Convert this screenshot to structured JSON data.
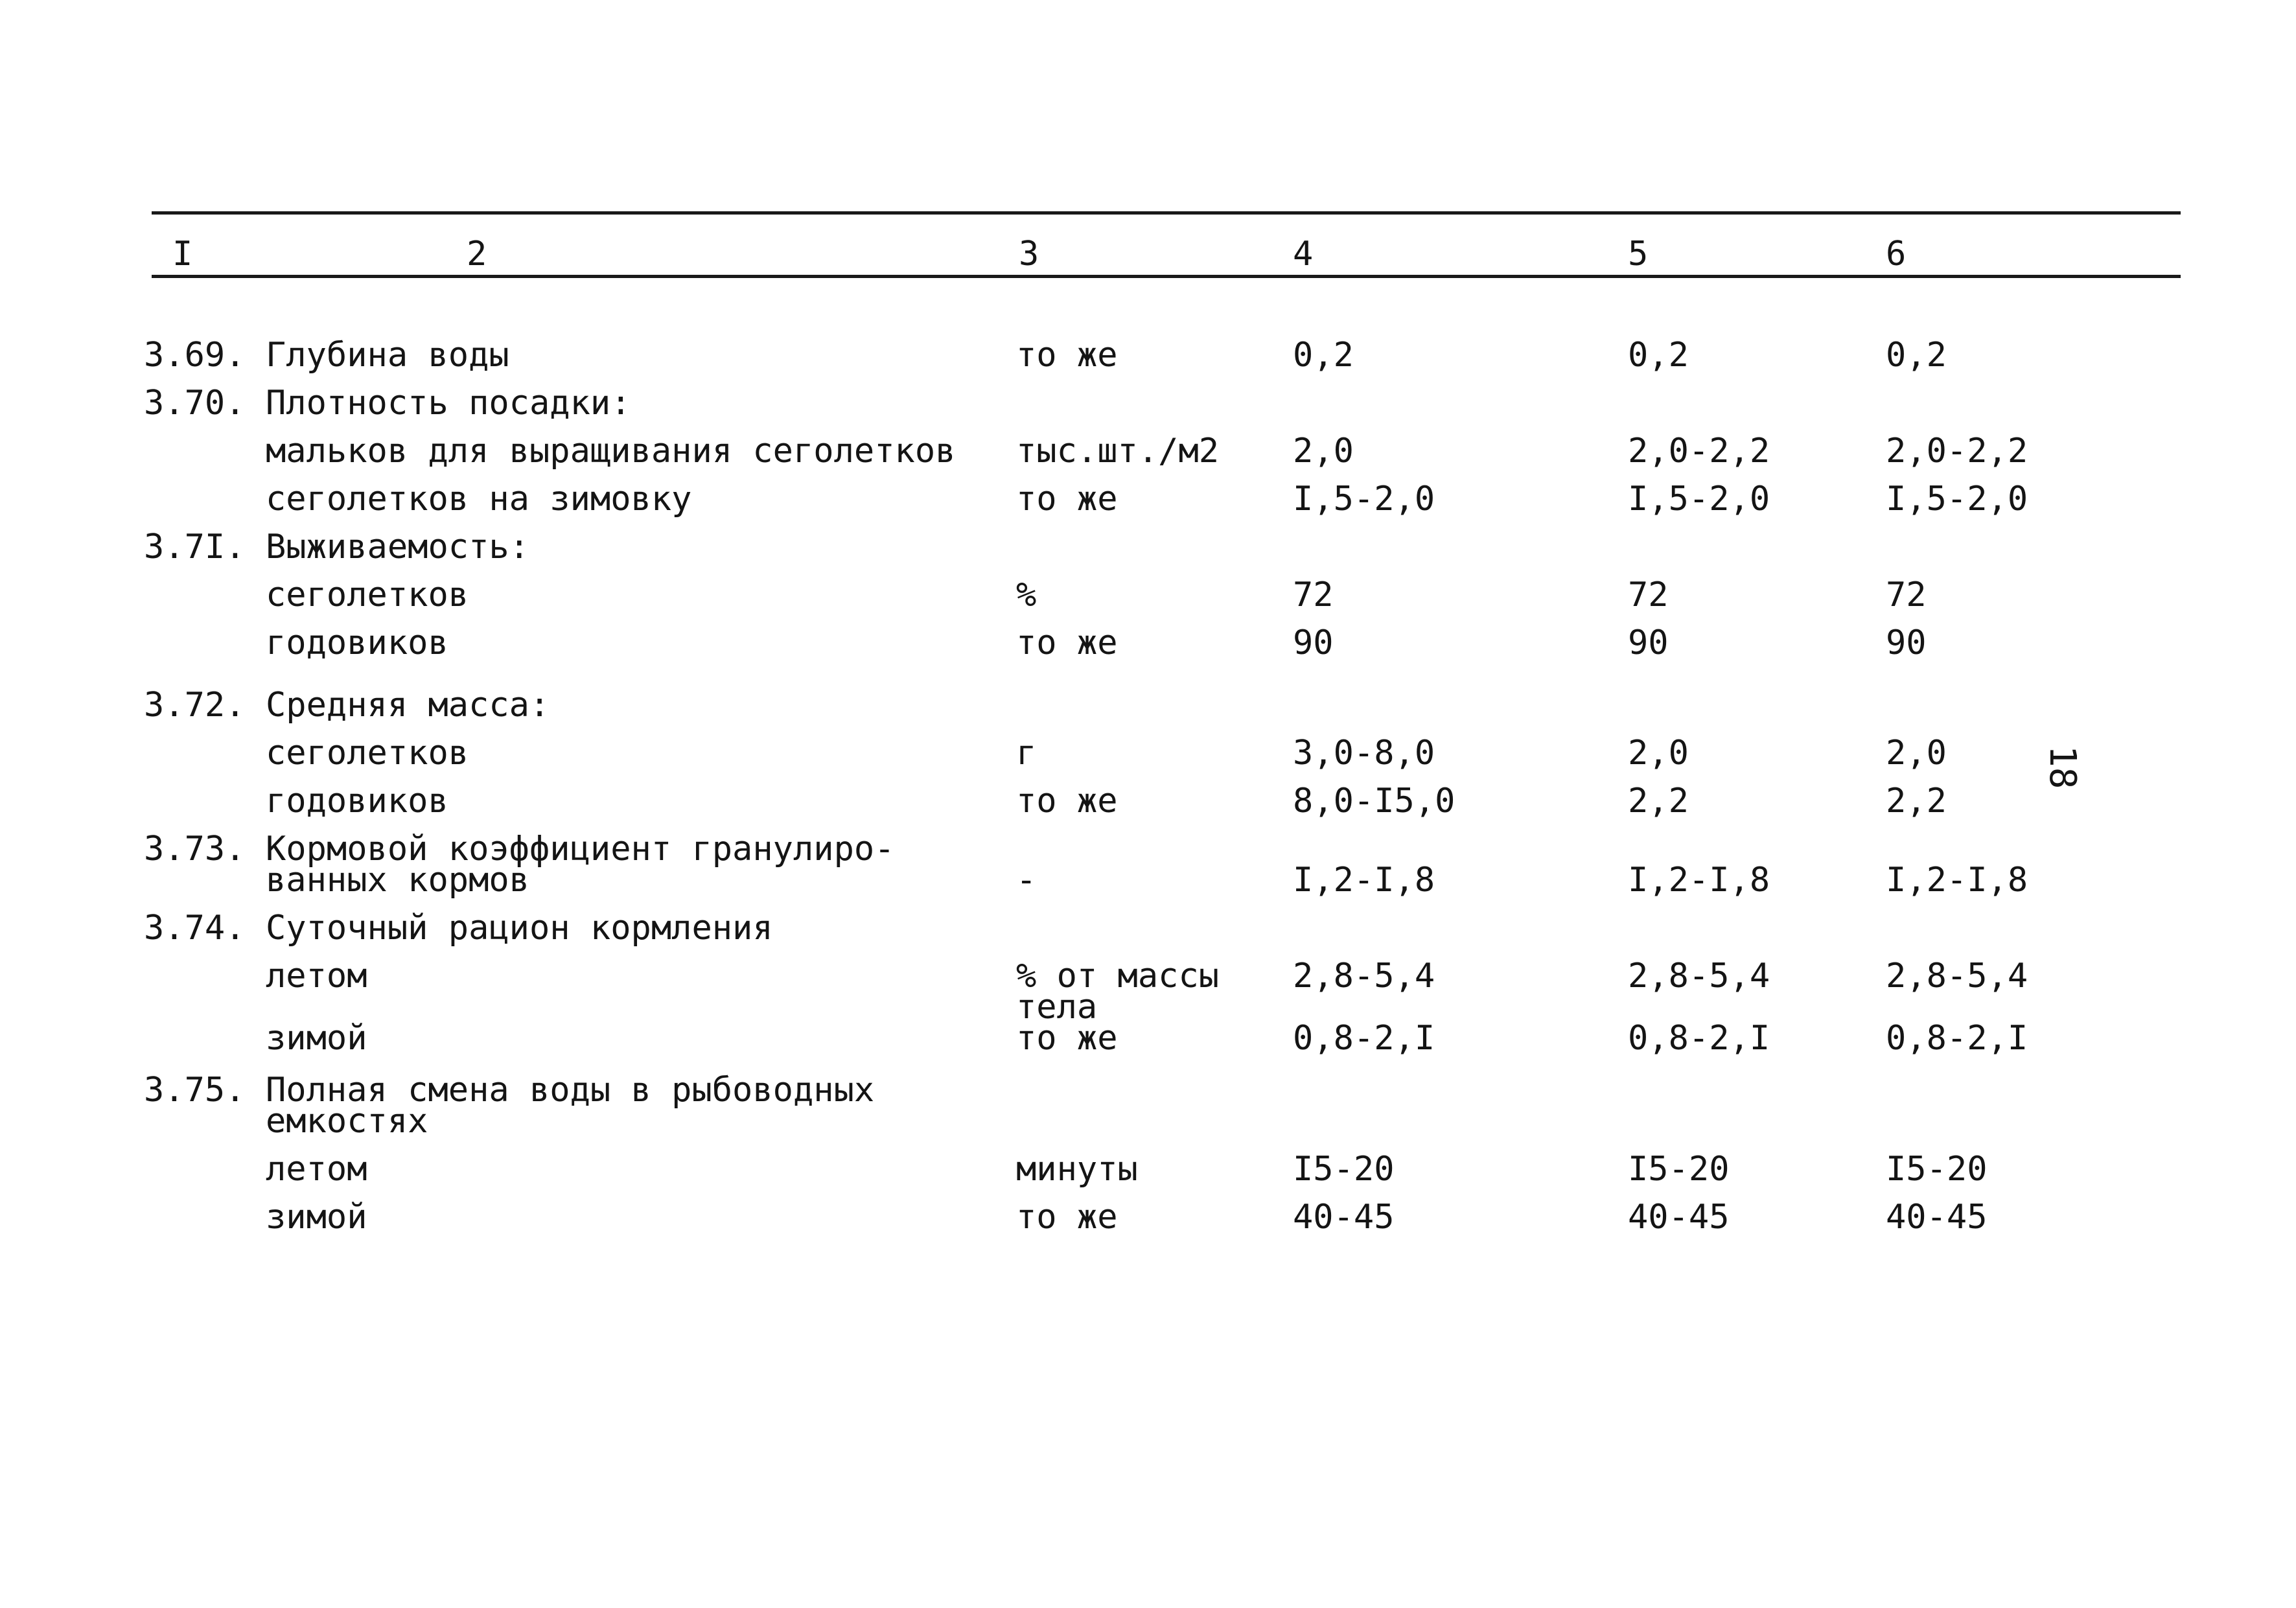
{
  "header": [
    "I",
    "2",
    "3",
    "4",
    "5",
    "6"
  ],
  "rows": [
    {
      "num": "3.69.",
      "label": "Глубина воды",
      "unit": "то же",
      "v4": "0,2",
      "v5": "0,2",
      "v6": "0,2"
    },
    {
      "num": "3.70.",
      "label": "Плотность посадки:",
      "unit": "",
      "v4": "",
      "v5": "",
      "v6": ""
    },
    {
      "num": "",
      "label": "мальков для выращивания сеголетков",
      "unit": "тыс.шт./м2",
      "v4": "2,0",
      "v5": "2,0-2,2",
      "v6": "2,0-2,2"
    },
    {
      "num": "",
      "label": "сеголетков на зимовку",
      "unit": "то же",
      "v4": "I,5-2,0",
      "v5": "I,5-2,0",
      "v6": "I,5-2,0"
    },
    {
      "num": "3.7I.",
      "label": "Выживаемость:",
      "unit": "",
      "v4": "",
      "v5": "",
      "v6": ""
    },
    {
      "num": "",
      "label": "сеголетков",
      "unit": "%",
      "v4": "72",
      "v5": "72",
      "v6": "72"
    },
    {
      "num": "",
      "label": "годовиков",
      "unit": "то же",
      "v4": "90",
      "v5": "90",
      "v6": "90"
    },
    {
      "num": "3.72.",
      "label": "Средняя масса:",
      "unit": "",
      "v4": "",
      "v5": "",
      "v6": ""
    },
    {
      "num": "",
      "label": "сеголетков",
      "unit": "г",
      "v4": "3,0-8,0",
      "v5": "2,0",
      "v6": "2,0"
    },
    {
      "num": "",
      "label": "годовиков",
      "unit": "то же",
      "v4": "8,0-I5,0",
      "v5": "2,2",
      "v6": "2,2"
    },
    {
      "num": "3.73.",
      "label": "Кормовой коэффициент гранулиро-",
      "unit": "",
      "v4": "",
      "v5": "",
      "v6": ""
    },
    {
      "num": "",
      "label": "ванных кормов",
      "unit": "-",
      "v4": "I,2-I,8",
      "v5": "I,2-I,8",
      "v6": "I,2-I,8"
    },
    {
      "num": "3.74.",
      "label": "Суточный рацион кормления",
      "unit": "",
      "v4": "",
      "v5": "",
      "v6": ""
    },
    {
      "num": "",
      "label": "летом",
      "unit": "% от массы",
      "v4": "2,8-5,4",
      "v5": "2,8-5,4",
      "v6": "2,8-5,4"
    },
    {
      "num": "",
      "label": "",
      "unit": "тела",
      "v4": "",
      "v5": "",
      "v6": ""
    },
    {
      "num": "",
      "label": "зимой",
      "unit": "то же",
      "v4": "0,8-2,I",
      "v5": "0,8-2,I",
      "v6": "0,8-2,I"
    },
    {
      "num": "3.75.",
      "label": "Полная смена воды в рыбоводных",
      "unit": "",
      "v4": "",
      "v5": "",
      "v6": ""
    },
    {
      "num": "",
      "label": "емкостях",
      "unit": "",
      "v4": "",
      "v5": "",
      "v6": ""
    },
    {
      "num": "",
      "label": "летом",
      "unit": "минуты",
      "v4": "I5-20",
      "v5": "I5-20",
      "v6": "I5-20"
    },
    {
      "num": "",
      "label": "зимой",
      "unit": "то же",
      "v4": "40-45",
      "v5": "40-45",
      "v6": "40-45"
    }
  ],
  "page_number": "18"
}
